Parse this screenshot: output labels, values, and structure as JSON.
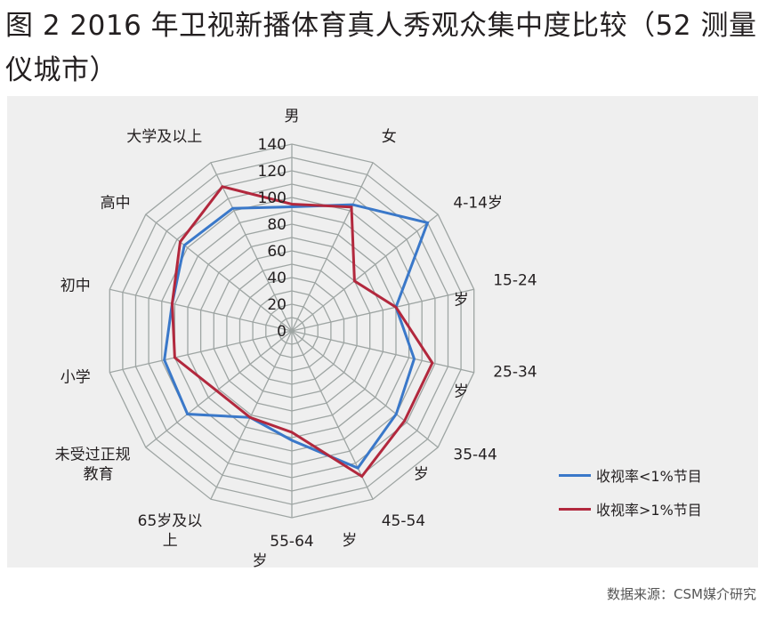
{
  "title": "图 2 2016 年卫视新播体育真人秀观众集中度比较（52 测量仪城市）",
  "source": "数据来源：CSM媒介研究",
  "colors": {
    "grid": "#9ea5a3",
    "series_low": "#3a78c9",
    "series_high": "#b2283d",
    "panel": "#efefef"
  },
  "chart_data": {
    "type": "radar",
    "title": "",
    "categories": [
      "男",
      "女",
      "4-14岁",
      "15-24岁",
      "25-34岁",
      "35-44岁",
      "45-54岁",
      "55-64岁",
      "65岁及以上",
      "未受过正规教育",
      "小学",
      "初中",
      "高中",
      "大学及以上"
    ],
    "radial_ticks": [
      "0",
      "20",
      "40",
      "60",
      "80",
      "100",
      "120",
      "140"
    ],
    "rlim": [
      0,
      140
    ],
    "grid": true,
    "legend_position": "bottom-right",
    "series": [
      {
        "name": "收视率<1%节目",
        "color": "#3a78c9",
        "values": [
          93,
          105,
          130,
          80,
          94,
          100,
          114,
          82,
          72,
          100,
          98,
          92,
          103,
          102
        ]
      },
      {
        "name": "收视率>1%节目",
        "color": "#b2283d",
        "values": [
          95,
          103,
          60,
          80,
          108,
          108,
          121,
          76,
          72,
          72,
          90,
          92,
          107,
          120
        ]
      }
    ]
  }
}
